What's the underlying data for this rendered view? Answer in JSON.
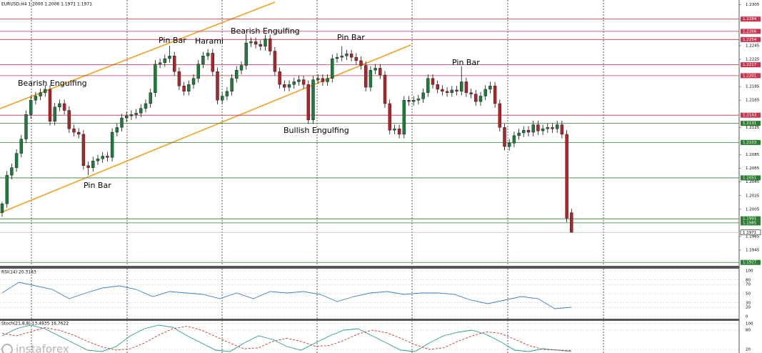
{
  "header": "EURUSD,H4  1.2000 1.2006 1.1971 1.1971",
  "watermark": "instaforex",
  "chart_data": [
    {
      "type": "candlestick",
      "up_color": "#1e7b3c",
      "down_color": "#b0232a",
      "ylim": [
        1.1922,
        1.2312
      ],
      "yticks": [
        1.2305,
        1.2245,
        1.2225,
        1.2185,
        1.2165,
        1.2125,
        1.2085,
        1.2065,
        1.2045,
        1.2025,
        1.2005,
        1.1965,
        1.1945
      ],
      "levels": [
        {
          "value": 1.2284,
          "color": "#c8354f"
        },
        {
          "value": 1.2266,
          "color": "#c8354f"
        },
        {
          "value": 1.2254,
          "color": "#c8354f"
        },
        {
          "value": 1.2217,
          "color": "#c8354f"
        },
        {
          "value": 1.2201,
          "color": "#c8354f"
        },
        {
          "value": 1.2143,
          "color": "#c8354f"
        },
        {
          "value": 1.2131,
          "color": "#2e7d32"
        },
        {
          "value": 1.2103,
          "color": "#2e7d32"
        },
        {
          "value": 1.2051,
          "color": "#2e7d32"
        },
        {
          "value": 1.1991,
          "color": "#2e7d32"
        },
        {
          "value": 1.1985,
          "color": "#2e7d32"
        },
        {
          "value": 1.1927,
          "color": "#2e7d32"
        }
      ],
      "current": 1.1971,
      "annotations": [
        "Bearish Engulfing",
        "Pin Bar",
        "Harami",
        "Bearish Engulfing",
        "Pin Bar",
        "Pin Bar",
        "Bullish Engulfing",
        "Pin Bar"
      ],
      "candles": [
        [
          1.2,
          1.2016,
          1.1994,
          1.2013
        ],
        [
          1.2013,
          1.2061,
          1.2007,
          1.2055
        ],
        [
          1.2055,
          1.2072,
          1.2049,
          1.2066
        ],
        [
          1.2066,
          1.2093,
          1.206,
          1.2087
        ],
        [
          1.2087,
          1.2114,
          1.2081,
          1.2108
        ],
        [
          1.2108,
          1.215,
          1.2102,
          1.2144
        ],
        [
          1.2144,
          1.2171,
          1.2138,
          1.2165
        ],
        [
          1.2165,
          1.2177,
          1.2159,
          1.2171
        ],
        [
          1.2171,
          1.2182,
          1.2165,
          1.2176
        ],
        [
          1.2176,
          1.2187,
          1.217,
          1.2181
        ],
        [
          1.2181,
          1.2187,
          1.2128,
          1.2134
        ],
        [
          1.2134,
          1.2161,
          1.2128,
          1.2155
        ],
        [
          1.2155,
          1.2166,
          1.2149,
          1.216
        ],
        [
          1.216,
          1.2166,
          1.2144,
          1.215
        ],
        [
          1.215,
          1.2156,
          1.2117,
          1.2123
        ],
        [
          1.2123,
          1.2129,
          1.2112,
          1.2118
        ],
        [
          1.2118,
          1.2124,
          1.2109,
          1.2115
        ],
        [
          1.2115,
          1.2121,
          1.2063,
          1.2069
        ],
        [
          1.2069,
          1.2075,
          1.2055,
          1.2066
        ],
        [
          1.2066,
          1.2082,
          1.206,
          1.2076
        ],
        [
          1.2076,
          1.2085,
          1.207,
          1.2079
        ],
        [
          1.2079,
          1.2089,
          1.2073,
          1.2083
        ],
        [
          1.2083,
          1.2089,
          1.2075,
          1.2081
        ],
        [
          1.2081,
          1.2124,
          1.2075,
          1.2118
        ],
        [
          1.2118,
          1.2131,
          1.2112,
          1.2125
        ],
        [
          1.2125,
          1.2145,
          1.2119,
          1.2139
        ],
        [
          1.2139,
          1.2148,
          1.2133,
          1.2142
        ],
        [
          1.2142,
          1.215,
          1.2136,
          1.2144
        ],
        [
          1.2144,
          1.2152,
          1.2138,
          1.2146
        ],
        [
          1.2146,
          1.2159,
          1.214,
          1.2153
        ],
        [
          1.2153,
          1.2166,
          1.2147,
          1.216
        ],
        [
          1.216,
          1.2182,
          1.2154,
          1.2176
        ],
        [
          1.2176,
          1.2224,
          1.217,
          1.2218
        ],
        [
          1.2218,
          1.2226,
          1.2212,
          1.222
        ],
        [
          1.222,
          1.2232,
          1.2214,
          1.2226
        ],
        [
          1.2226,
          1.2245,
          1.222,
          1.223
        ],
        [
          1.223,
          1.2236,
          1.2201,
          1.2207
        ],
        [
          1.2207,
          1.2213,
          1.218,
          1.2186
        ],
        [
          1.2186,
          1.2192,
          1.2172,
          1.2178
        ],
        [
          1.2178,
          1.2194,
          1.2172,
          1.2188
        ],
        [
          1.2188,
          1.2203,
          1.2182,
          1.2197
        ],
        [
          1.2197,
          1.2224,
          1.2191,
          1.2218
        ],
        [
          1.2218,
          1.2236,
          1.2212,
          1.223
        ],
        [
          1.223,
          1.224,
          1.2224,
          1.2234
        ],
        [
          1.2234,
          1.224,
          1.2201,
          1.2207
        ],
        [
          1.2207,
          1.2213,
          1.2159,
          1.2165
        ],
        [
          1.2165,
          1.2177,
          1.2159,
          1.2171
        ],
        [
          1.2171,
          1.2184,
          1.2165,
          1.2178
        ],
        [
          1.2178,
          1.2203,
          1.2172,
          1.2197
        ],
        [
          1.2197,
          1.2215,
          1.2191,
          1.2209
        ],
        [
          1.2209,
          1.2222,
          1.2203,
          1.2216
        ],
        [
          1.2216,
          1.2262,
          1.221,
          1.2249
        ],
        [
          1.2249,
          1.2257,
          1.2243,
          1.2251
        ],
        [
          1.2251,
          1.2257,
          1.2241,
          1.2247
        ],
        [
          1.2247,
          1.2253,
          1.2238,
          1.2244
        ],
        [
          1.2244,
          1.2261,
          1.2238,
          1.2255
        ],
        [
          1.2255,
          1.2261,
          1.2231,
          1.2237
        ],
        [
          1.2237,
          1.2243,
          1.2201,
          1.2207
        ],
        [
          1.2207,
          1.2213,
          1.2182,
          1.2188
        ],
        [
          1.2188,
          1.2194,
          1.2178,
          1.2184
        ],
        [
          1.2184,
          1.2194,
          1.2178,
          1.2188
        ],
        [
          1.2188,
          1.2198,
          1.2182,
          1.2192
        ],
        [
          1.2192,
          1.2201,
          1.2186,
          1.2195
        ],
        [
          1.2195,
          1.2201,
          1.2182,
          1.2188
        ],
        [
          1.2188,
          1.2194,
          1.213,
          1.2136
        ],
        [
          1.2136,
          1.2201,
          1.213,
          1.2195
        ],
        [
          1.2195,
          1.2203,
          1.2189,
          1.2197
        ],
        [
          1.2197,
          1.2203,
          1.2186,
          1.2192
        ],
        [
          1.2192,
          1.2203,
          1.2186,
          1.2197
        ],
        [
          1.2197,
          1.2232,
          1.2191,
          1.2226
        ],
        [
          1.2226,
          1.2234,
          1.222,
          1.2228
        ],
        [
          1.2228,
          1.2244,
          1.2222,
          1.223
        ],
        [
          1.223,
          1.2239,
          1.2224,
          1.2233
        ],
        [
          1.2233,
          1.2239,
          1.2222,
          1.2228
        ],
        [
          1.2228,
          1.2234,
          1.2217,
          1.2223
        ],
        [
          1.2223,
          1.2229,
          1.221,
          1.2216
        ],
        [
          1.2216,
          1.2222,
          1.2178,
          1.2184
        ],
        [
          1.2184,
          1.2215,
          1.2178,
          1.2209
        ],
        [
          1.2209,
          1.2218,
          1.2203,
          1.2212
        ],
        [
          1.2212,
          1.2218,
          1.2196,
          1.2202
        ],
        [
          1.2202,
          1.2208,
          1.2154,
          1.216
        ],
        [
          1.216,
          1.2166,
          1.2115,
          1.2121
        ],
        [
          1.2121,
          1.2129,
          1.2115,
          1.2123
        ],
        [
          1.2123,
          1.2129,
          1.2109,
          1.2115
        ],
        [
          1.2115,
          1.2171,
          1.2109,
          1.2165
        ],
        [
          1.2165,
          1.2171,
          1.2157,
          1.2163
        ],
        [
          1.2163,
          1.2171,
          1.2157,
          1.2165
        ],
        [
          1.2165,
          1.2173,
          1.2159,
          1.2167
        ],
        [
          1.2167,
          1.2182,
          1.2161,
          1.2176
        ],
        [
          1.2176,
          1.2203,
          1.217,
          1.2197
        ],
        [
          1.2197,
          1.2203,
          1.2182,
          1.2188
        ],
        [
          1.2188,
          1.2194,
          1.2175,
          1.2181
        ],
        [
          1.2181,
          1.2187,
          1.2172,
          1.2178
        ],
        [
          1.2178,
          1.2184,
          1.217,
          1.2176
        ],
        [
          1.2176,
          1.2186,
          1.217,
          1.218
        ],
        [
          1.218,
          1.2186,
          1.2172,
          1.2178
        ],
        [
          1.2178,
          1.2215,
          1.2172,
          1.2192
        ],
        [
          1.2192,
          1.2198,
          1.217,
          1.2176
        ],
        [
          1.2176,
          1.2182,
          1.2168,
          1.2174
        ],
        [
          1.2174,
          1.218,
          1.2157,
          1.2163
        ],
        [
          1.2163,
          1.2177,
          1.2157,
          1.2171
        ],
        [
          1.2171,
          1.2187,
          1.2165,
          1.2181
        ],
        [
          1.2181,
          1.2192,
          1.2175,
          1.2186
        ],
        [
          1.2186,
          1.2192,
          1.2154,
          1.216
        ],
        [
          1.216,
          1.2166,
          1.2119,
          1.2125
        ],
        [
          1.2125,
          1.2131,
          1.2091,
          1.2097
        ],
        [
          1.2097,
          1.2108,
          1.2091,
          1.2102
        ],
        [
          1.2102,
          1.2119,
          1.2096,
          1.2113
        ],
        [
          1.2113,
          1.2123,
          1.2107,
          1.2117
        ],
        [
          1.2117,
          1.2127,
          1.2111,
          1.2121
        ],
        [
          1.2121,
          1.2127,
          1.2112,
          1.2118
        ],
        [
          1.2118,
          1.2135,
          1.2112,
          1.2129
        ],
        [
          1.2129,
          1.2135,
          1.2114,
          1.212
        ],
        [
          1.212,
          1.2129,
          1.2114,
          1.2123
        ],
        [
          1.2123,
          1.2131,
          1.2117,
          1.2125
        ],
        [
          1.2125,
          1.2131,
          1.2117,
          1.2123
        ],
        [
          1.2123,
          1.2135,
          1.2117,
          1.2129
        ],
        [
          1.2129,
          1.2135,
          1.2109,
          1.2115
        ],
        [
          1.2115,
          1.2121,
          1.1986,
          1.1992
        ],
        [
          1.2,
          1.2006,
          1.1971,
          1.1971
        ]
      ]
    },
    {
      "type": "line",
      "title": "RSI(14) 20.3183",
      "ylim": [
        0,
        100
      ],
      "yticks": [
        100,
        80,
        70,
        50,
        30,
        20,
        0
      ],
      "series": [
        {
          "color": "#3d7fc4",
          "values": [
            51.6,
            75,
            67.2,
            59.4,
            39.1,
            51.6,
            62.5,
            67.2,
            59.4,
            43.8,
            54.7,
            51.6,
            48.4,
            39.1,
            51.6,
            39.1,
            54.7,
            51.6,
            54.7,
            48.4,
            32.8,
            43.8,
            51.6,
            54.7,
            48.4,
            51.6,
            51.6,
            48.4,
            35.9,
            28.1,
            35.9,
            43.8,
            39.1,
            17.2,
            20.3183
          ]
        }
      ]
    },
    {
      "type": "line",
      "title": "Stoch(21,8,8) 13.4935 16.7622",
      "ylim": [
        0,
        100
      ],
      "yticks": [
        100,
        80,
        20
      ],
      "series": [
        {
          "color": "#2a9d8f",
          "values": [
            62.2,
            84.4,
            95.6,
            84.4,
            62.2,
            40,
            17.8,
            13.3,
            28.9,
            62.2,
            84.4,
            95.6,
            88.9,
            62.2,
            40,
            17.8,
            13.3,
            40,
            62.2,
            51.1,
            28.9,
            17.8,
            40,
            62.2,
            80,
            84.4,
            62.2,
            40,
            17.8,
            13.3,
            40,
            62.2,
            73.3,
            80,
            66.7,
            44.4,
            17.8,
            13.3,
            22.2,
            17.8,
            13.4935
          ]
        },
        {
          "color": "#c0392b",
          "dashed": true,
          "values": [
            70,
            62.2,
            75,
            88,
            80,
            65,
            45,
            28,
            18,
            22,
            40,
            65,
            85,
            92,
            80,
            60,
            40,
            22,
            25,
            45,
            55,
            45,
            30,
            32,
            48,
            68,
            80,
            72,
            55,
            35,
            20,
            25,
            45,
            62,
            75,
            70,
            52,
            32,
            20,
            18,
            16.7622
          ]
        }
      ]
    }
  ]
}
